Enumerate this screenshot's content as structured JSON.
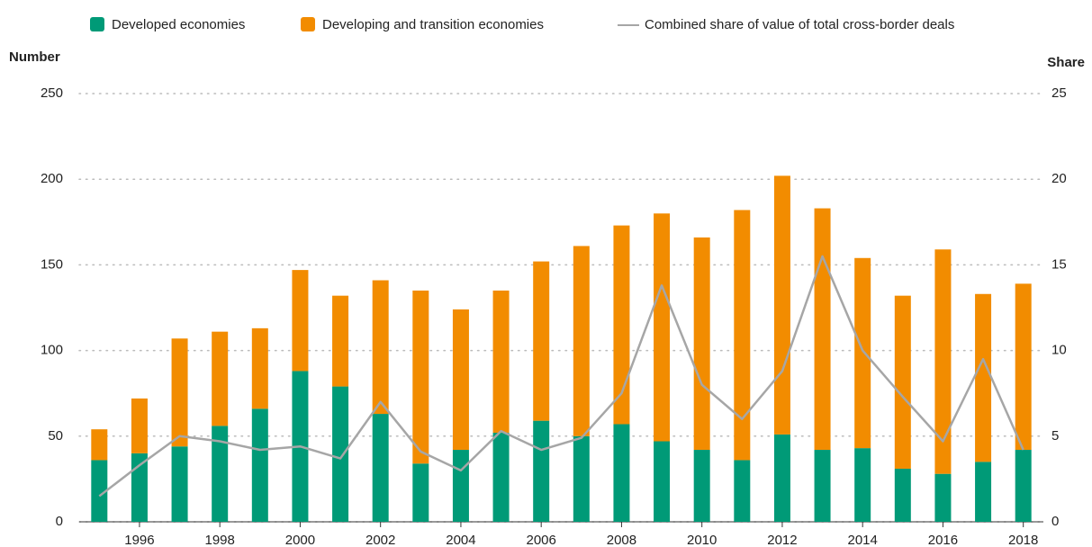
{
  "chart_data": {
    "type": "bar",
    "stacked": true,
    "y_label": "Number",
    "y2_label": "Share",
    "categories": [
      null,
      "1996",
      null,
      "1998",
      null,
      "2000",
      null,
      "2002",
      null,
      "2004",
      null,
      "2006",
      null,
      "2008",
      null,
      "2010",
      null,
      "2012",
      null,
      "2014",
      null,
      "2016",
      null,
      "2018"
    ],
    "series": [
      {
        "name": "Developed economies",
        "color": "#009a77",
        "type": "bar",
        "values": [
          36,
          40,
          44,
          56,
          66,
          88,
          79,
          63,
          34,
          42,
          52,
          59,
          50,
          57,
          47,
          42,
          36,
          51,
          42,
          43,
          31,
          28,
          35,
          42
        ]
      },
      {
        "name": "Developing and transition economies",
        "color": "#f28c00",
        "type": "bar",
        "values": [
          18,
          32,
          63,
          55,
          47,
          59,
          53,
          78,
          101,
          82,
          83,
          93,
          111,
          116,
          133,
          124,
          146,
          151,
          141,
          111,
          101,
          131,
          98,
          97
        ]
      },
      {
        "name": "Combined share of value of total cross-border deals",
        "color": "#a6a6a6",
        "type": "line",
        "axis": "y2",
        "values": [
          1.5,
          3.3,
          5,
          4.7,
          4.2,
          4.4,
          3.7,
          7,
          4.1,
          3,
          5.3,
          4.2,
          4.9,
          7.5,
          13.8,
          8,
          6,
          8.8,
          15.5,
          10,
          7.3,
          4.7,
          9.5,
          4.2
        ]
      }
    ],
    "ylim": [
      0,
      250
    ],
    "yticks": [
      0,
      50,
      100,
      150,
      200,
      250
    ],
    "y2lim": [
      0,
      25
    ],
    "y2ticks": [
      0,
      5,
      10,
      15,
      20,
      25
    ],
    "grid": true,
    "legend": "top"
  }
}
